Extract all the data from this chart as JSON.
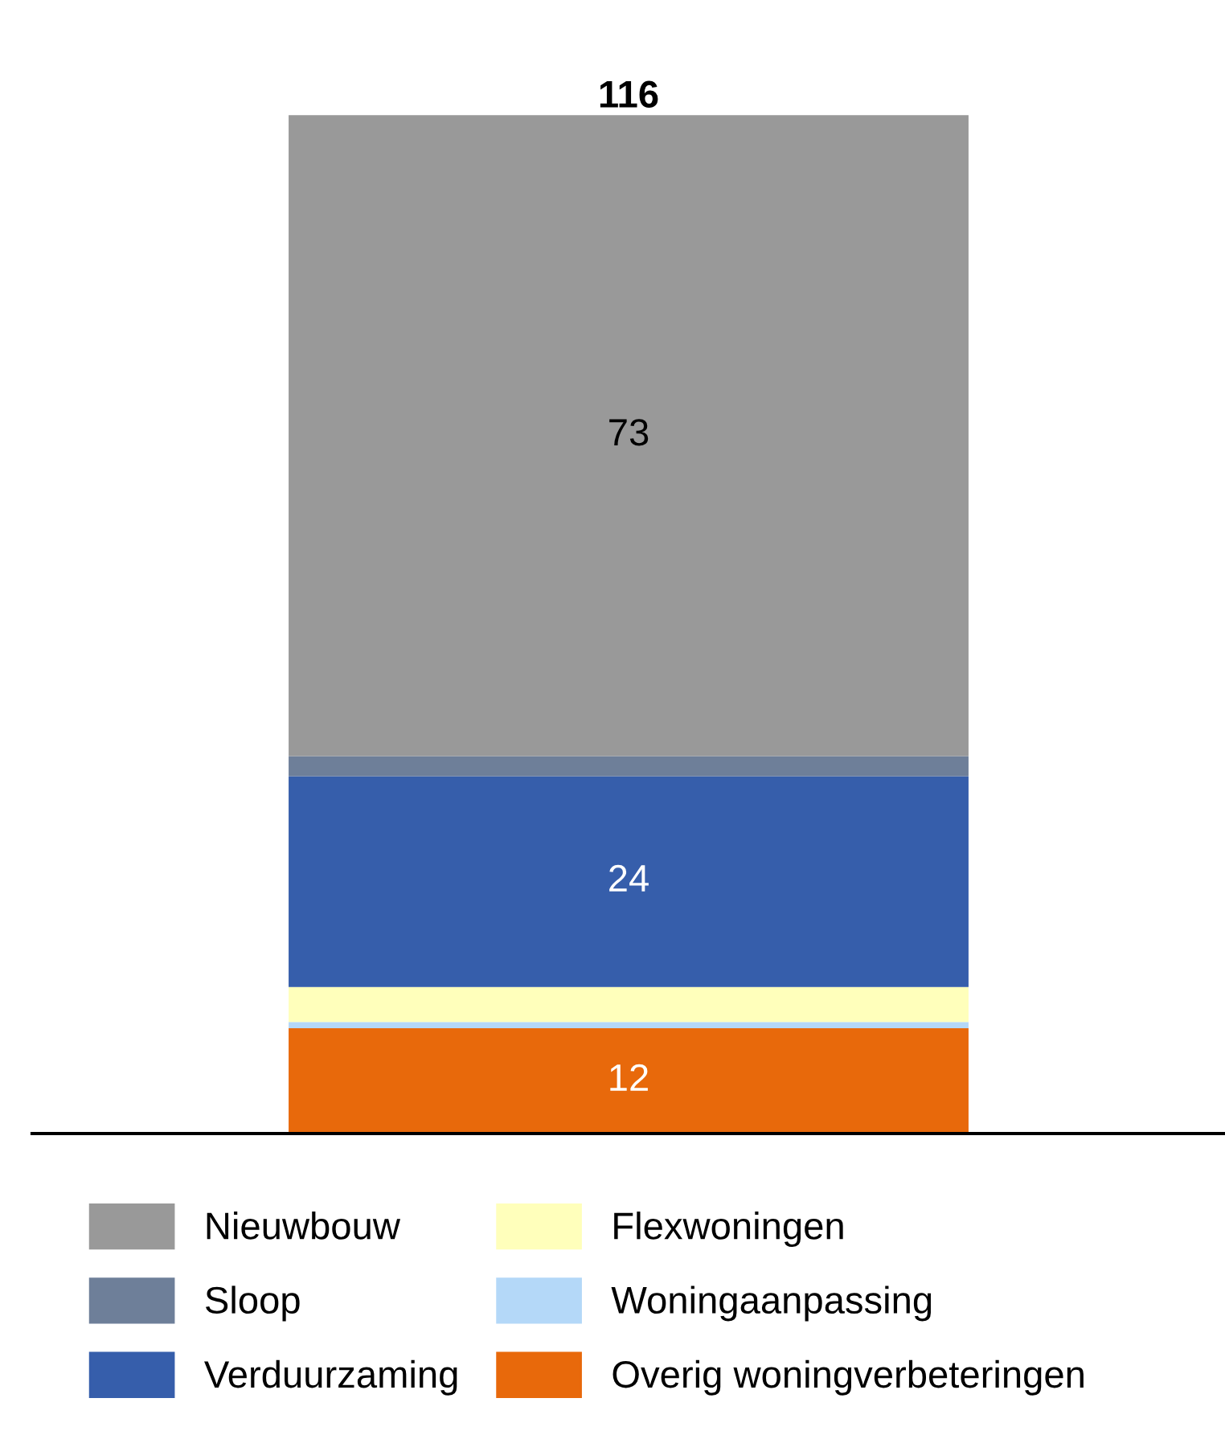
{
  "chart_data": {
    "type": "bar",
    "stacked": true,
    "categories": [
      null
    ],
    "series": [
      {
        "name": "Overig woningverbeteringen",
        "color": "#e8690b",
        "values": [
          12
        ],
        "value_labels": [
          "12"
        ]
      },
      {
        "name": "Woningaanpassing",
        "color": "#b4d8f8",
        "values": [
          0.7
        ],
        "value_labels": [
          null
        ]
      },
      {
        "name": "Flexwoningen",
        "color": "#ffffbb",
        "values": [
          4
        ],
        "value_labels": [
          null
        ]
      },
      {
        "name": "Verduurzaming",
        "color": "#365eab",
        "values": [
          24
        ],
        "value_labels": [
          "24"
        ]
      },
      {
        "name": "Sloop",
        "color": "#6e7f99",
        "values": [
          2.3
        ],
        "value_labels": [
          null
        ]
      },
      {
        "name": "Nieuwbouw",
        "color": "#999999",
        "values": [
          73
        ],
        "value_labels": [
          "73"
        ]
      }
    ],
    "totals": [
      "116"
    ],
    "legend": "bottom",
    "grid": false
  }
}
